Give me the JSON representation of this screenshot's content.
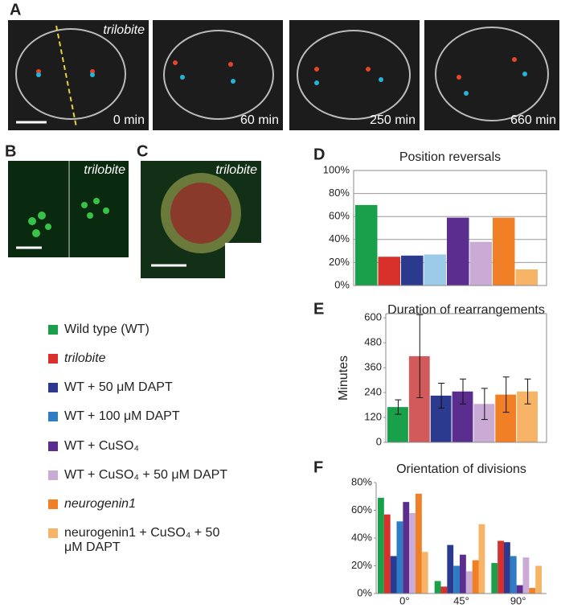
{
  "panels": {
    "A": {
      "label": "A",
      "image_label": "trilobite",
      "times": [
        "0 min",
        "60 min",
        "250 min",
        "660 min"
      ]
    },
    "B": {
      "label": "B",
      "image_label": "trilobite"
    },
    "C": {
      "label": "C",
      "image_label": "trilobite"
    }
  },
  "chart_data": [
    {
      "type": "bar",
      "panel": "D",
      "title": "Position reversals",
      "values": [
        70,
        25,
        26,
        27,
        59,
        38,
        59,
        14
      ],
      "colors": [
        "#1aa04a",
        "#d8312c",
        "#2b3a8e",
        "#9ccbe9",
        "#5b2d8e",
        "#c9abd6",
        "#f07f26",
        "#f8b466"
      ],
      "ylim": [
        0,
        100
      ],
      "yticks": [
        {
          "value": 0,
          "label": "0%"
        },
        {
          "value": 20,
          "label": "20%"
        },
        {
          "value": 40,
          "label": "40%"
        },
        {
          "value": 60,
          "label": "60%"
        },
        {
          "value": 80,
          "label": "80%"
        },
        {
          "value": 100,
          "label": "100%"
        }
      ],
      "grid": true
    },
    {
      "type": "bar",
      "panel": "E",
      "title": "Duration of rearrangements",
      "ylabel": "Minutes",
      "values": [
        170,
        415,
        225,
        245,
        185,
        230,
        245
      ],
      "errors": [
        35,
        200,
        60,
        60,
        75,
        85,
        60
      ],
      "colors": [
        "#1aa04a",
        "#d35a5a",
        "#2b3a8e",
        "#5b2d8e",
        "#c9abd6",
        "#f07f26",
        "#f8b466"
      ],
      "ylim": [
        0,
        620
      ],
      "yticks": [
        0,
        120,
        240,
        360,
        480,
        600
      ],
      "grid": false
    },
    {
      "type": "grouped-bar",
      "panel": "F",
      "title": "Orientation of divisions",
      "categories": [
        "0°",
        "45°",
        "90°"
      ],
      "series": [
        {
          "name": "Wild type (WT)",
          "color": "#1aa04a",
          "values": [
            69,
            9,
            22
          ]
        },
        {
          "name": "trilobite",
          "color": "#d8312c",
          "values": [
            57,
            5,
            38
          ]
        },
        {
          "name": "WT + 50 μM DAPT",
          "color": "#2b3a8e",
          "values": [
            27,
            35,
            37
          ]
        },
        {
          "name": "WT + 100 μM DAPT",
          "color": "#2e7cc4",
          "values": [
            52,
            20,
            27
          ]
        },
        {
          "name": "WT + CuSO₄",
          "color": "#5b2d8e",
          "values": [
            66,
            28,
            6
          ]
        },
        {
          "name": "WT + CuSO₄ + 50 μM DAPT",
          "color": "#c9abd6",
          "values": [
            58,
            16,
            26
          ]
        },
        {
          "name": "neurogenin1",
          "color": "#f07f26",
          "values": [
            72,
            24,
            4
          ]
        },
        {
          "name": "neurogenin1 + CuSO₄ + 50 μM DAPT",
          "color": "#f8b466",
          "values": [
            30,
            50,
            20
          ]
        }
      ],
      "ylim": [
        0,
        80
      ],
      "yticks": [
        {
          "value": 0,
          "label": "0%"
        },
        {
          "value": 20,
          "label": "20%"
        },
        {
          "value": 40,
          "label": "40%"
        },
        {
          "value": 60,
          "label": "60%"
        },
        {
          "value": 80,
          "label": "80%"
        }
      ],
      "grid": false
    }
  ]
}
